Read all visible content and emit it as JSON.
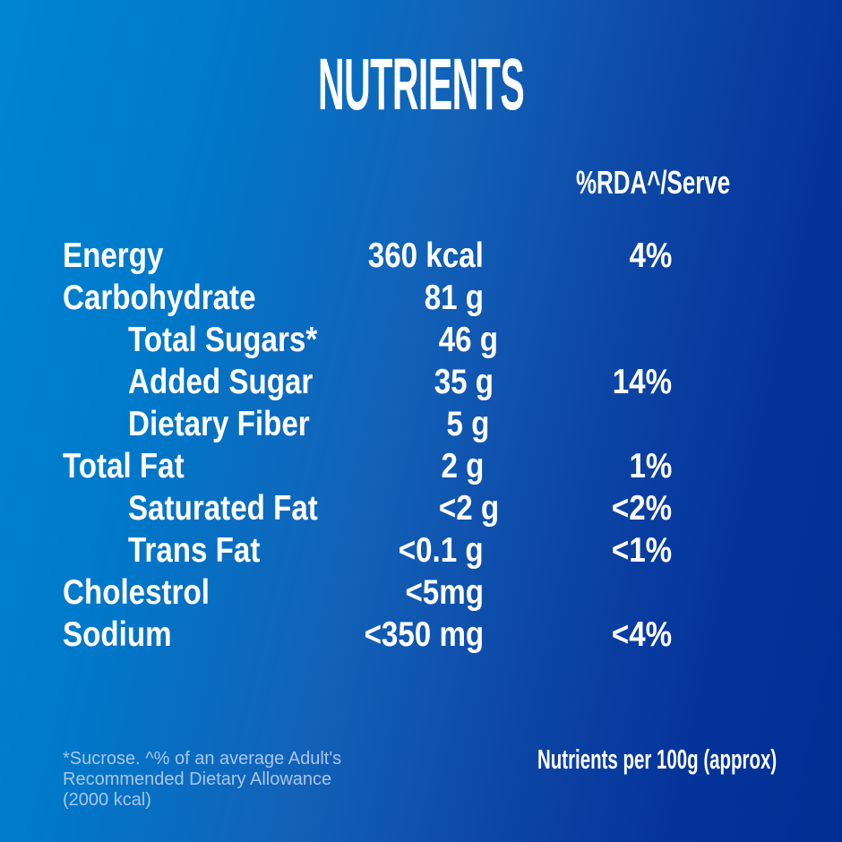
{
  "title": "NUTRIENTS",
  "table": {
    "rda_header": "%RDA^/Serve",
    "rows": [
      {
        "label": "Energy",
        "amount": "360 kcal",
        "rda": "4%"
      },
      {
        "label": "Carbohydrate",
        "amount": "81 g",
        "rda": ""
      },
      {
        "label": "Total Sugars*",
        "amount": "46 g",
        "rda": ""
      },
      {
        "label": "Added Sugar",
        "amount": "35 g",
        "rda": "14%"
      },
      {
        "label": "Dietary Fiber",
        "amount": "5 g",
        "rda": ""
      },
      {
        "label": "Total Fat",
        "amount": "2 g",
        "rda": "1%"
      },
      {
        "label": "Saturated Fat",
        "amount": "<2 g",
        "rda": "<2%"
      },
      {
        "label": "Trans Fat",
        "amount": "<0.1 g",
        "rda": "<1%"
      },
      {
        "label": "Cholestrol",
        "amount": "<5mg",
        "rda": ""
      },
      {
        "label": "Sodium",
        "amount": "<350 mg",
        "rda": "<4%"
      }
    ]
  },
  "footer": {
    "note_line1": "*Sucrose. ^% of an average Adult's",
    "note_line2": "Recommended Dietary Allowance",
    "note_line3": "(2000 kcal)",
    "serving_note": "Nutrients per 100g (approx)"
  },
  "colors": {
    "background_left": "#0085d4",
    "background_right": "#003399",
    "text_primary": "#ffffff",
    "text_footnote": "#a9c6e8"
  }
}
